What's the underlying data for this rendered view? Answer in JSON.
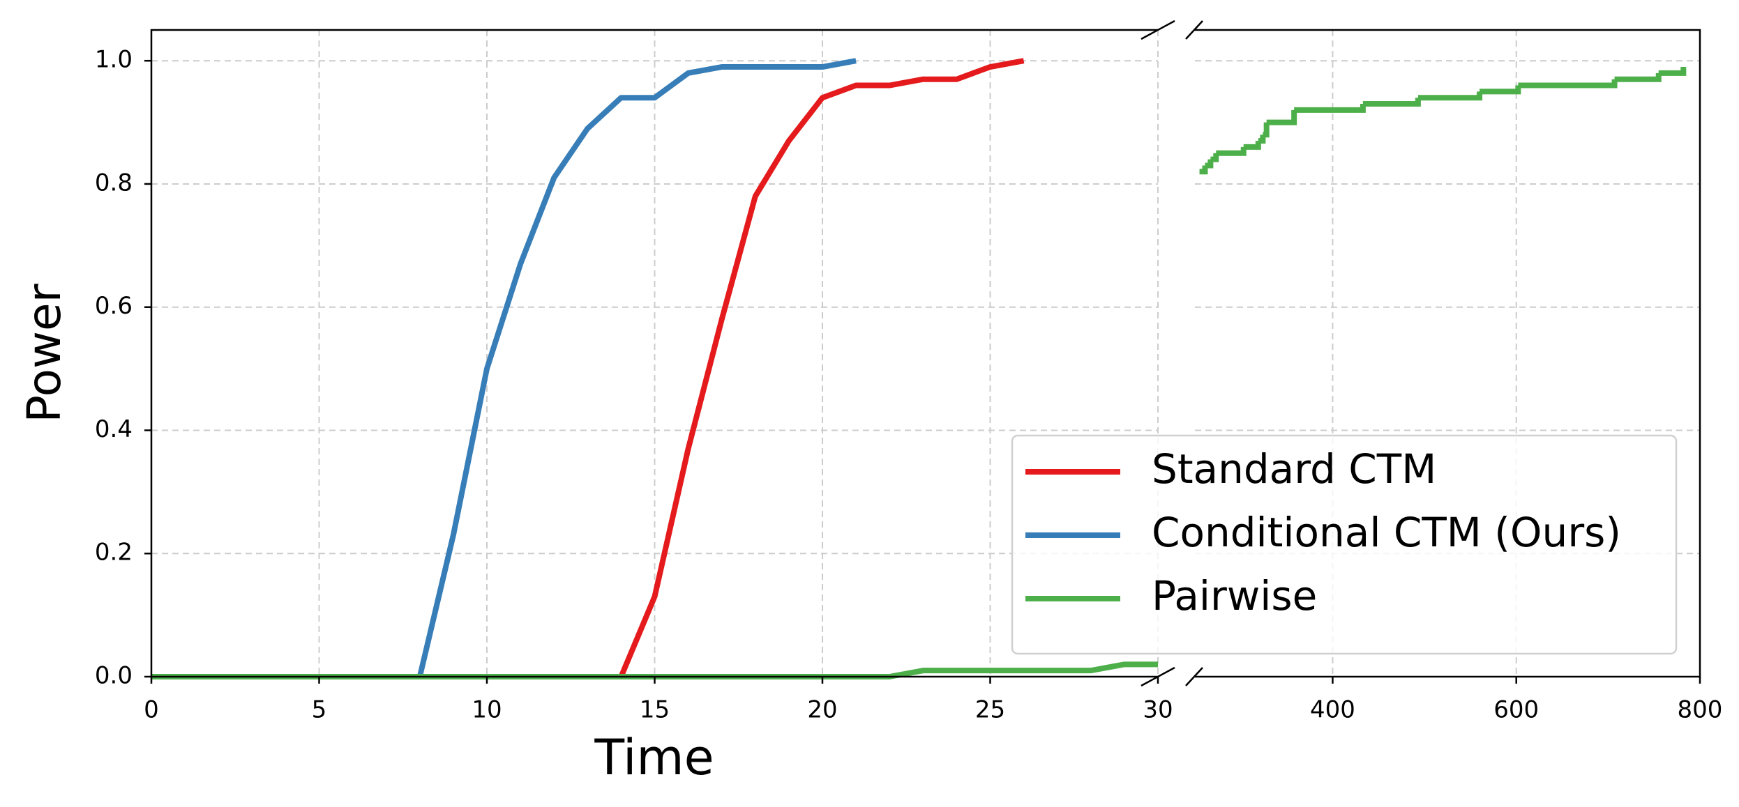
{
  "chart_data": [
    {
      "type": "line",
      "x_label": "Time",
      "y_label": "Power",
      "grid": true,
      "legend": "lower right",
      "xlim": [
        0,
        30
      ],
      "xticks": [
        0,
        5,
        10,
        15,
        20,
        25,
        30
      ],
      "ylim": [
        0,
        1.05
      ],
      "yticks": [
        {
          "value": 0,
          "label": "0.0"
        },
        0.2,
        0.4,
        0.6,
        0.8,
        {
          "value": 1,
          "label": "1.0"
        }
      ],
      "series": [
        {
          "name": "Standard CTM",
          "color": "#e41a1c",
          "x": [
            0,
            14,
            15,
            16,
            17,
            18,
            19,
            20,
            21,
            22,
            23,
            24,
            25,
            26
          ],
          "values": [
            0,
            0,
            0.13,
            0.37,
            0.58,
            0.78,
            0.87,
            0.94,
            0.96,
            0.96,
            0.97,
            0.97,
            0.99,
            1.0
          ]
        },
        {
          "name": "Conditional CTM (Ours)",
          "color": "#377eb8",
          "x": [
            0,
            8,
            9,
            10,
            11,
            12,
            13,
            14,
            15,
            16,
            17,
            18,
            19,
            20,
            21
          ],
          "values": [
            0,
            0,
            0.23,
            0.5,
            0.67,
            0.81,
            0.89,
            0.94,
            0.94,
            0.98,
            0.99,
            0.99,
            0.99,
            0.99,
            1.0
          ]
        },
        {
          "name": "Pairwise",
          "color": "#4daf4a",
          "x": [
            0,
            22,
            23,
            28,
            29,
            30
          ],
          "values": [
            0,
            0,
            0.01,
            0.01,
            0.02,
            0.02
          ]
        }
      ]
    },
    {
      "type": "line",
      "drawstyle": "steps-post",
      "grid": true,
      "xlim": [
        250,
        800
      ],
      "xticks": [
        400,
        600,
        800
      ],
      "series": [
        {
          "color": "#4daf4a",
          "x": [
            255,
            261,
            267,
            273,
            303,
            319,
            324,
            328,
            358,
            433,
            493,
            560,
            602,
            707,
            755,
            782
          ],
          "values": [
            0.82,
            0.83,
            0.84,
            0.85,
            0.86,
            0.87,
            0.88,
            0.9,
            0.92,
            0.93,
            0.94,
            0.95,
            0.96,
            0.97,
            0.98,
            0.99
          ]
        }
      ]
    }
  ]
}
